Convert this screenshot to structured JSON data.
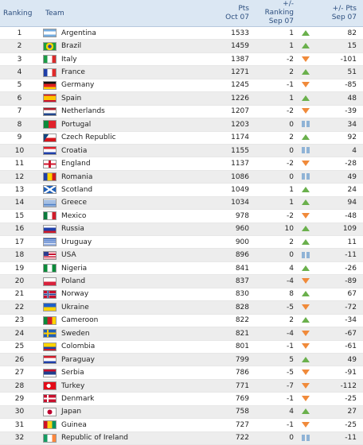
{
  "headers": {
    "ranking": "Ranking",
    "team": "Team",
    "pts_top": "Pts",
    "pts_sub": "Oct 07",
    "chg_top": "+/- Ranking",
    "chg_sub": "Sep 07",
    "pchg_top": "+/- Pts",
    "pchg_sub": "Sep 07"
  },
  "rows": [
    {
      "rank": "1",
      "team": "Argentina",
      "pts": "1533",
      "chg": "1",
      "dir": "up",
      "pchg": "82",
      "flag": "linear-gradient(#74acdf 0 33%, #fff 33% 67%, #74acdf 67%)"
    },
    {
      "rank": "2",
      "team": "Brazil",
      "pts": "1459",
      "chg": "1",
      "dir": "up",
      "pchg": "15",
      "flag": "radial-gradient(circle at 50% 50%, #2a4aa8 0 22%, #ffd400 23% 46%, #1b9f3b 47%)"
    },
    {
      "rank": "3",
      "team": "Italy",
      "pts": "1387",
      "chg": "-2",
      "dir": "down",
      "pchg": "-101",
      "flag": "linear-gradient(90deg, #1c9b46 0 33%, #fff 33% 67%, #d82c2c 67%)"
    },
    {
      "rank": "4",
      "team": "France",
      "pts": "1271",
      "chg": "2",
      "dir": "up",
      "pchg": "51",
      "flag": "linear-gradient(90deg, #1f3fa8 0 33%, #fff 33% 67%, #e02b2b 67%)"
    },
    {
      "rank": "5",
      "team": "Germany",
      "pts": "1245",
      "chg": "-1",
      "dir": "down",
      "pchg": "-85",
      "flag": "linear-gradient(#111 0 33%, #e02020 33% 67%, #ffcc00 67%)"
    },
    {
      "rank": "6",
      "team": "Spain",
      "pts": "1226",
      "chg": "1",
      "dir": "up",
      "pchg": "48",
      "flag": "linear-gradient(#c8102e 0 25%, #ffc400 25% 75%, #c8102e 75%)"
    },
    {
      "rank": "7",
      "team": "Netherlands",
      "pts": "1207",
      "chg": "-2",
      "dir": "down",
      "pchg": "-39",
      "flag": "linear-gradient(#ae1c28 0 33%, #fff 33% 67%, #21468b 67%)"
    },
    {
      "rank": "8",
      "team": "Portugal",
      "pts": "1203",
      "chg": "0",
      "dir": "same",
      "pchg": "34",
      "flag": "linear-gradient(90deg, #0b8a3a 0 40%, #e0212b 40%)"
    },
    {
      "rank": "9",
      "team": "Czech Republic",
      "pts": "1174",
      "chg": "2",
      "dir": "up",
      "pchg": "92",
      "flag": "linear-gradient(125deg, #11457e 0 32%, transparent 32%), linear-gradient(#fff 0 50%, #d7141a 50%)"
    },
    {
      "rank": "10",
      "team": "Croatia",
      "pts": "1155",
      "chg": "0",
      "dir": "same",
      "pchg": "4",
      "flag": "linear-gradient(#e0212b 0 33%, #fff 33% 67%, #1f3fa8 67%)"
    },
    {
      "rank": "11",
      "team": "England",
      "pts": "1137",
      "chg": "-2",
      "dir": "down",
      "pchg": "-28",
      "flag": "linear-gradient(90deg, transparent 0 42%, #cf142b 42% 58%, transparent 58%), linear-gradient(#fff 0 40%, #cf142b 40% 60%, #fff 60%)"
    },
    {
      "rank": "12",
      "team": "Romania",
      "pts": "1086",
      "chg": "0",
      "dir": "same",
      "pchg": "49",
      "flag": "linear-gradient(90deg, #1f3fa8 0 33%, #ffd400 33% 67%, #d01c1f 67%)"
    },
    {
      "rank": "13",
      "team": "Scotland",
      "pts": "1049",
      "chg": "1",
      "dir": "up",
      "pchg": "24",
      "flag": "linear-gradient(33deg, transparent 0 44%, #fff 44% 56%, transparent 56%), linear-gradient(-33deg, transparent 0 44%, #fff 44% 56%, #1f5fb8 56%), #1f5fb8"
    },
    {
      "rank": "14",
      "team": "Greece",
      "pts": "1034",
      "chg": "1",
      "dir": "up",
      "pchg": "94",
      "flag": "repeating-linear-gradient(#1f5fb8 0 1.2px, #fff 1.2px 2.4px)"
    },
    {
      "rank": "15",
      "team": "Mexico",
      "pts": "978",
      "chg": "-2",
      "dir": "down",
      "pchg": "-48",
      "flag": "linear-gradient(90deg, #0b7a3c 0 33%, #fff 33% 67%, #d01c2a 67%)"
    },
    {
      "rank": "16",
      "team": "Russia",
      "pts": "960",
      "chg": "10",
      "dir": "up",
      "pchg": "109",
      "flag": "linear-gradient(#fff 0 33%, #1f3fa8 33% 67%, #d01c2a 67%)"
    },
    {
      "rank": "17",
      "team": "Uruguay",
      "pts": "900",
      "chg": "2",
      "dir": "up",
      "pchg": "11",
      "flag": "repeating-linear-gradient(#fff 0 1.2px, #2a5fc0 1.2px 2.4px)"
    },
    {
      "rank": "18",
      "team": "USA",
      "pts": "896",
      "chg": "0",
      "dir": "same",
      "pchg": "-11",
      "flag": "linear-gradient(90deg, #2b3b8f 0 40%, transparent 40%) top/100% 55% no-repeat, repeating-linear-gradient(#c8102e 0 1.6px, #fff 1.6px 3.2px)"
    },
    {
      "rank": "19",
      "team": "Nigeria",
      "pts": "841",
      "chg": "4",
      "dir": "up",
      "pchg": "-26",
      "flag": "linear-gradient(90deg, #0b8a3a 0 33%, #fff 33% 67%, #0b8a3a 67%)"
    },
    {
      "rank": "20",
      "team": "Poland",
      "pts": "837",
      "chg": "-4",
      "dir": "down",
      "pchg": "-89",
      "flag": "linear-gradient(#fff 0 50%, #d8213b 50%)"
    },
    {
      "rank": "21",
      "team": "Norway",
      "pts": "830",
      "chg": "8",
      "dir": "up",
      "pchg": "67",
      "flag": "linear-gradient(90deg, transparent 0 30%, #fff 30% 33%, #1f3f8f 33% 40%, #fff 40% 43%, transparent 43%), linear-gradient(#c8102e 0 38%, #fff 38% 42%, #1f3f8f 42% 58%, #fff 58% 62%, #c8102e 62%)"
    },
    {
      "rank": "22",
      "team": "Ukraine",
      "pts": "828",
      "chg": "-5",
      "dir": "down",
      "pchg": "-72",
      "flag": "linear-gradient(#1f5fc8 0 50%, #ffd400 50%)"
    },
    {
      "rank": "23",
      "team": "Cameroon",
      "pts": "822",
      "chg": "2",
      "dir": "up",
      "pchg": "-34",
      "flag": "linear-gradient(90deg, #0b8a3a 0 33%, #d01c2a 33% 67%, #ffd400 67%)"
    },
    {
      "rank": "24",
      "team": "Sweden",
      "pts": "821",
      "chg": "-4",
      "dir": "down",
      "pchg": "-67",
      "flag": "linear-gradient(90deg, transparent 0 30%, #ffcc00 30% 42%, transparent 42%), linear-gradient(#1f5fb8 0 42%, #ffcc00 42% 58%, #1f5fb8 58%)"
    },
    {
      "rank": "25",
      "team": "Colombia",
      "pts": "801",
      "chg": "-1",
      "dir": "down",
      "pchg": "-61",
      "flag": "linear-gradient(#ffd400 0 50%, #1f3fa8 50% 75%, #d01c2a 75%)"
    },
    {
      "rank": "26",
      "team": "Paraguay",
      "pts": "799",
      "chg": "5",
      "dir": "up",
      "pchg": "49",
      "flag": "linear-gradient(#d01c2a 0 33%, #fff 33% 67%, #1f3fa8 67%)"
    },
    {
      "rank": "27",
      "team": "Serbia",
      "pts": "786",
      "chg": "-5",
      "dir": "down",
      "pchg": "-91",
      "flag": "linear-gradient(#c8102e 0 33%, #1f3f8f 33% 67%, #fff 67%)"
    },
    {
      "rank": "28",
      "team": "Turkey",
      "pts": "771",
      "chg": "-7",
      "dir": "down",
      "pchg": "-112",
      "flag": "radial-gradient(circle at 42% 50%, #fff 0 22%, transparent 23%), #e30a17"
    },
    {
      "rank": "29",
      "team": "Denmark",
      "pts": "769",
      "chg": "-1",
      "dir": "down",
      "pchg": "-25",
      "flag": "linear-gradient(90deg, transparent 0 30%, #fff 30% 40%, transparent 40%), linear-gradient(#c8102e 0 42%, #fff 42% 58%, #c8102e 58%)"
    },
    {
      "rank": "30",
      "team": "Japan",
      "pts": "758",
      "chg": "4",
      "dir": "up",
      "pchg": "27",
      "flag": "radial-gradient(circle, #bc002d 0 28%, #fff 30%)"
    },
    {
      "rank": "31",
      "team": "Guinea",
      "pts": "727",
      "chg": "-1",
      "dir": "down",
      "pchg": "-25",
      "flag": "linear-gradient(90deg, #ce1126 0 33%, #fcd116 33% 67%, #009460 67%)"
    },
    {
      "rank": "32",
      "team": "Republic of Ireland",
      "pts": "722",
      "chg": "0",
      "dir": "same",
      "pchg": "-11",
      "flag": "linear-gradient(90deg, #169b62 0 33%, #fff 33% 67%, #ff883e 67%)"
    }
  ]
}
